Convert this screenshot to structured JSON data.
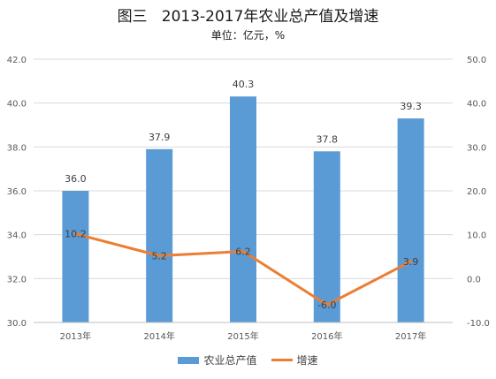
{
  "chart_data": {
    "type": "bar",
    "title": "图三   2013-2017年农业总产值及增速",
    "subtitle": "单位：亿元，%",
    "categories": [
      "2013年",
      "2014年",
      "2015年",
      "2016年",
      "2017年"
    ],
    "series": [
      {
        "name": "农业总产值",
        "type": "bar",
        "axis": "left",
        "values": [
          36.0,
          37.9,
          40.3,
          37.8,
          39.3
        ],
        "labels": [
          "36.0",
          "37.9",
          "40.3",
          "37.8",
          "39.3"
        ]
      },
      {
        "name": "增速",
        "type": "line",
        "axis": "right",
        "values": [
          10.2,
          5.2,
          6.2,
          -6.0,
          3.9
        ],
        "labels": [
          "10.2",
          "5.2",
          "6.2",
          "-6.0",
          "3.9"
        ]
      }
    ],
    "y_left": {
      "min": 30,
      "max": 42,
      "ticks": [
        30,
        32,
        34,
        36,
        38,
        40,
        42
      ],
      "tick_labels": [
        "30.0",
        "32.0",
        "34.0",
        "36.0",
        "38.0",
        "40.0",
        "42.0"
      ]
    },
    "y_right": {
      "min": -10,
      "max": 50,
      "ticks": [
        -10,
        0,
        10,
        20,
        30,
        40,
        50
      ],
      "tick_labels": [
        "-10.0",
        "0.0",
        "10.0",
        "20.0",
        "30.0",
        "40.0",
        "50.0"
      ]
    },
    "grid": true,
    "legend_position": "bottom",
    "colors": {
      "bar": "#5b9bd5",
      "line": "#ed7d31",
      "grid": "#d9d9d9"
    }
  }
}
